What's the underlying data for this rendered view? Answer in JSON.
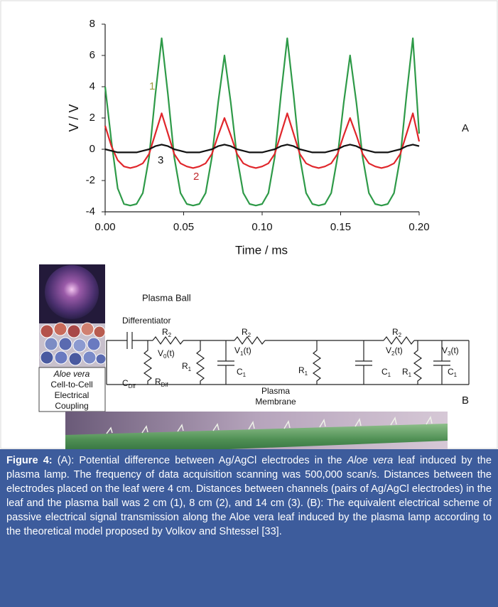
{
  "chart_data": {
    "type": "line",
    "x_label": "Time / ms",
    "y_label": "V / V",
    "panel_label": "A",
    "x": [
      0,
      0.004,
      0.008,
      0.012,
      0.016,
      0.02,
      0.024,
      0.028,
      0.032,
      0.036,
      0.04,
      0.044,
      0.048,
      0.052,
      0.056,
      0.06,
      0.064,
      0.068,
      0.072,
      0.076,
      0.08,
      0.084,
      0.088,
      0.092,
      0.096,
      0.1,
      0.104,
      0.108,
      0.112,
      0.116,
      0.12,
      0.124,
      0.128,
      0.132,
      0.136,
      0.14,
      0.144,
      0.148,
      0.152,
      0.156,
      0.16,
      0.164,
      0.168,
      0.172,
      0.176,
      0.18,
      0.184,
      0.188,
      0.192,
      0.196,
      0.2
    ],
    "xlim": [
      0,
      0.2
    ],
    "xticks": [
      {
        "value": 0,
        "label": "0.00"
      },
      {
        "value": 0.05,
        "label": "0.05"
      },
      {
        "value": 0.1,
        "label": "0.10"
      },
      {
        "value": 0.15,
        "label": "0.15"
      },
      {
        "value": 0.2,
        "label": "0.20"
      }
    ],
    "ylim": [
      -4,
      8
    ],
    "yticks": [
      -4,
      -2,
      0,
      2,
      4,
      6,
      8
    ],
    "series": [
      {
        "name": "1",
        "color": "#2e9a48",
        "label_color": "#9c9a3c",
        "values": [
          4.0,
          0.5,
          -2.5,
          -3.5,
          -3.6,
          -3.5,
          -2.8,
          -0.5,
          3.5,
          7.1,
          3.5,
          -0.5,
          -2.8,
          -3.5,
          -3.6,
          -3.5,
          -2.8,
          -0.5,
          3.0,
          6.0,
          3.0,
          -0.5,
          -2.8,
          -3.5,
          -3.6,
          -3.5,
          -2.8,
          -0.5,
          3.5,
          7.1,
          3.5,
          -0.5,
          -2.8,
          -3.5,
          -3.6,
          -3.5,
          -2.8,
          -0.5,
          3.0,
          6.0,
          3.0,
          -0.5,
          -2.8,
          -3.5,
          -3.6,
          -3.5,
          -2.8,
          -0.5,
          3.5,
          7.1,
          1.0
        ]
      },
      {
        "name": "2",
        "color": "#e0262b",
        "label_color": "#c0282c",
        "values": [
          1.5,
          0.2,
          -0.7,
          -1.1,
          -1.2,
          -1.1,
          -0.9,
          -0.3,
          1.0,
          2.3,
          1.0,
          -0.3,
          -0.9,
          -1.1,
          -1.2,
          -1.1,
          -0.9,
          -0.3,
          0.9,
          2.0,
          0.9,
          -0.3,
          -0.9,
          -1.1,
          -1.2,
          -1.1,
          -0.9,
          -0.3,
          1.0,
          2.3,
          1.0,
          -0.3,
          -0.9,
          -1.1,
          -1.2,
          -1.1,
          -0.9,
          -0.3,
          0.9,
          2.0,
          0.9,
          -0.3,
          -0.9,
          -1.1,
          -1.2,
          -1.1,
          -0.9,
          -0.3,
          1.0,
          2.3,
          0.5
        ]
      },
      {
        "name": "3",
        "color": "#111111",
        "label_color": "#111111",
        "values": [
          0.0,
          -0.1,
          -0.2,
          -0.2,
          -0.2,
          -0.2,
          -0.1,
          0.0,
          0.2,
          0.3,
          0.2,
          0.0,
          -0.1,
          -0.2,
          -0.2,
          -0.2,
          -0.1,
          0.0,
          0.2,
          0.3,
          0.2,
          0.0,
          -0.1,
          -0.2,
          -0.2,
          -0.2,
          -0.1,
          0.0,
          0.2,
          0.3,
          0.2,
          0.0,
          -0.1,
          -0.2,
          -0.2,
          -0.2,
          -0.1,
          0.0,
          0.2,
          0.3,
          0.2,
          0.0,
          -0.1,
          -0.2,
          -0.2,
          -0.2,
          -0.1,
          0.0,
          0.2,
          0.3,
          0.2
        ]
      }
    ]
  },
  "diagram": {
    "panel_label": "B",
    "photo_label": "Plasma Ball",
    "differentiator": "Differentiator",
    "membrane_lines": [
      "Plasma",
      "Membrane"
    ],
    "coupling_lines": [
      "Aloe vera",
      "Cell-to-Cell",
      "Electrical",
      "Coupling"
    ],
    "circuit_labels": [
      {
        "text": "R",
        "sub": "2"
      },
      {
        "text": "V",
        "sub": "0",
        "tail": "(t)"
      },
      {
        "text": "C",
        "sub": "Dif"
      },
      {
        "text": "R",
        "sub": "Dif"
      },
      {
        "text": "R",
        "sub": "1"
      },
      {
        "text": "R",
        "sub": "2"
      },
      {
        "text": "V",
        "sub": "1",
        "tail": "(t)"
      },
      {
        "text": "C",
        "sub": "1"
      },
      {
        "text": "R",
        "sub": "1"
      },
      {
        "text": "R",
        "sub": "2"
      },
      {
        "text": "V",
        "sub": "2",
        "tail": "(t)"
      },
      {
        "text": "C",
        "sub": "1"
      },
      {
        "text": "R",
        "sub": "1"
      },
      {
        "text": "V",
        "sub": "3",
        "tail": "(t)"
      },
      {
        "text": "C",
        "sub": "1"
      }
    ]
  },
  "caption": {
    "label": "Figure 4:",
    "text_1": "(A): Potential difference between Ag/AgCl electrodes in the",
    "italic": "Aloe vera",
    "text_2": "leaf induced by the plasma lamp. The frequency of data acquisition scanning was 500,000 scan/s. Distances between the electrodes placed on the leaf were 4 cm. Distances between channels (pairs of Ag/AgCl electrodes) in the leaf and the plasma ball was 2 cm (1), 8 cm (2), and 14 cm (3). (B): The equivalent electrical scheme of passive electrical signal transmission along the Aloe vera leaf induced by the plasma lamp according to the theoretical model proposed by Volkov and Shtessel [33]."
  }
}
